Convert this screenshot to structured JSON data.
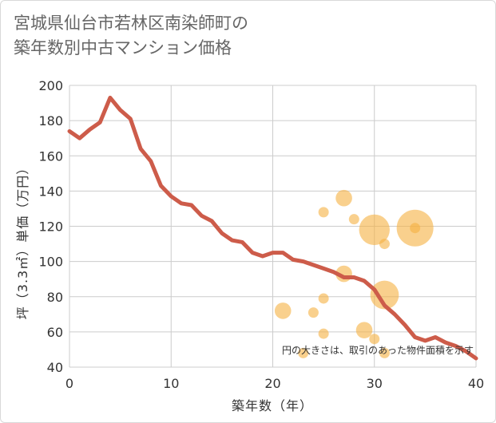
{
  "title": {
    "line1": "宮城県仙台市若林区南染師町の",
    "line2": "築年数別中古マンション価格"
  },
  "chart_data": {
    "type": "scatter",
    "xlabel": "築年数（年）",
    "ylabel": "坪（3.3㎡）単価（万円）",
    "xlim": [
      0,
      40
    ],
    "ylim": [
      40,
      200
    ],
    "x_ticks": [
      0,
      10,
      20,
      30,
      40
    ],
    "y_ticks": [
      40,
      60,
      80,
      100,
      120,
      140,
      160,
      180,
      200
    ],
    "grid": true,
    "note": "円の大きさは、取引のあった物件面積を示す",
    "colors": {
      "bubble": "#f5b041",
      "line": "#cd5c4a",
      "grid": "#cccccc"
    },
    "bubbles": [
      {
        "x": 23,
        "y": 48,
        "size": 2
      },
      {
        "x": 25,
        "y": 59,
        "size": 2
      },
      {
        "x": 24,
        "y": 71,
        "size": 2
      },
      {
        "x": 21,
        "y": 72,
        "size": 5
      },
      {
        "x": 25,
        "y": 79,
        "size": 2
      },
      {
        "x": 27,
        "y": 93,
        "size": 5
      },
      {
        "x": 25,
        "y": 128,
        "size": 2
      },
      {
        "x": 27,
        "y": 136,
        "size": 5
      },
      {
        "x": 28,
        "y": 124,
        "size": 2
      },
      {
        "x": 29,
        "y": 61,
        "size": 5
      },
      {
        "x": 30,
        "y": 56,
        "size": 2
      },
      {
        "x": 30,
        "y": 118,
        "size": 12
      },
      {
        "x": 31,
        "y": 110,
        "size": 2
      },
      {
        "x": 31,
        "y": 81,
        "size": 11
      },
      {
        "x": 31,
        "y": 48,
        "size": 2
      },
      {
        "x": 34,
        "y": 119,
        "size": 15
      },
      {
        "x": 34,
        "y": 119,
        "size": 2
      }
    ],
    "trend": {
      "x": [
        0,
        1,
        2,
        3,
        4,
        5,
        6,
        7,
        8,
        9,
        10,
        11,
        12,
        13,
        14,
        15,
        16,
        17,
        18,
        19,
        20,
        21,
        22,
        23,
        24,
        25,
        26,
        27,
        28,
        29,
        30,
        31,
        32,
        33,
        34,
        35,
        36,
        37,
        38,
        39,
        40
      ],
      "y": [
        174,
        170,
        175,
        179,
        193,
        186,
        181,
        164,
        157,
        143,
        137,
        133,
        132,
        126,
        123,
        116,
        112,
        111,
        105,
        103,
        105,
        105,
        101,
        100,
        98,
        96,
        94,
        91,
        91,
        89,
        84,
        75,
        70,
        64,
        57,
        55,
        57,
        54,
        52,
        49,
        45
      ]
    }
  }
}
